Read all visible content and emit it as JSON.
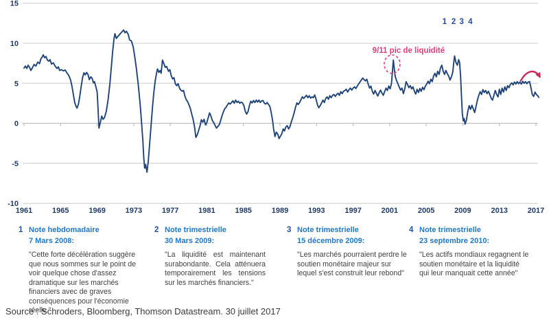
{
  "colors": {
    "line": "#1e4379",
    "grid": "#cbcbcb",
    "axis_line": "#b3b3b3",
    "axis_text": "#1f3a68",
    "pink": "#e13d78",
    "arrow_pink": "#c92956",
    "note_number": "#2150a0",
    "note_heading": "#1f78c8",
    "body_text": "#404040"
  },
  "chart_data": {
    "type": "line",
    "title": "",
    "x_axis": {
      "ticks": [
        1961,
        1965,
        1969,
        1973,
        1977,
        1981,
        1985,
        1989,
        1993,
        1997,
        2001,
        2005,
        2009,
        2013,
        2017
      ],
      "range": [
        1961,
        2017.6
      ]
    },
    "y_axis": {
      "ticks": [
        15,
        10,
        5,
        0,
        -5,
        -10
      ],
      "range": [
        -10,
        15
      ]
    },
    "grid": true,
    "annotations": {
      "peak": {
        "text": "9/11 pic de liquidité",
        "label_year": 2003.07,
        "label_value": 8.8,
        "circle_year": 2001.27,
        "circle_value": 7.38,
        "circle_rx": 11.5,
        "circle_ry": 13.5
      },
      "note_markers": [
        {
          "label": "1",
          "year": 2007.0
        },
        {
          "label": "2",
          "year": 2008.0
        },
        {
          "label": "3",
          "year": 2008.87
        },
        {
          "label": "4",
          "year": 2009.82
        }
      ],
      "arrow": {
        "x1": 2015.3,
        "y1": 5.25,
        "cx1": 2016.0,
        "cy1": 6.7,
        "cx2": 2016.9,
        "cy2": 6.85,
        "x2": 2017.45,
        "y2": 5.75
      }
    },
    "points": [
      [
        1961.0,
        6.9
      ],
      [
        1961.15,
        7.15
      ],
      [
        1961.3,
        6.85
      ],
      [
        1961.45,
        7.25
      ],
      [
        1961.6,
        7.0
      ],
      [
        1961.75,
        6.6
      ],
      [
        1961.9,
        6.9
      ],
      [
        1962.1,
        7.35
      ],
      [
        1962.3,
        7.15
      ],
      [
        1962.5,
        7.65
      ],
      [
        1962.7,
        7.45
      ],
      [
        1962.85,
        8.05
      ],
      [
        1963.0,
        8.3
      ],
      [
        1963.1,
        8.55
      ],
      [
        1963.25,
        8.2
      ],
      [
        1963.4,
        8.35
      ],
      [
        1963.55,
        7.9
      ],
      [
        1963.7,
        7.75
      ],
      [
        1963.85,
        7.95
      ],
      [
        1964.0,
        7.4
      ],
      [
        1964.2,
        7.55
      ],
      [
        1964.4,
        7.15
      ],
      [
        1964.6,
        6.85
      ],
      [
        1964.75,
        7.05
      ],
      [
        1964.9,
        6.6
      ],
      [
        1965.1,
        6.7
      ],
      [
        1965.3,
        6.55
      ],
      [
        1965.5,
        6.65
      ],
      [
        1965.7,
        6.3
      ],
      [
        1965.9,
        5.95
      ],
      [
        1966.1,
        5.4
      ],
      [
        1966.25,
        4.6
      ],
      [
        1966.4,
        3.6
      ],
      [
        1966.55,
        2.6
      ],
      [
        1966.7,
        2.1
      ],
      [
        1966.8,
        1.9
      ],
      [
        1966.95,
        2.4
      ],
      [
        1967.1,
        3.4
      ],
      [
        1967.25,
        4.6
      ],
      [
        1967.4,
        5.7
      ],
      [
        1967.55,
        6.3
      ],
      [
        1967.7,
        6.05
      ],
      [
        1967.85,
        6.35
      ],
      [
        1968.0,
        6.1
      ],
      [
        1968.15,
        5.45
      ],
      [
        1968.3,
        5.8
      ],
      [
        1968.45,
        5.65
      ],
      [
        1968.6,
        5.05
      ],
      [
        1968.7,
        5.2
      ],
      [
        1968.85,
        4.6
      ],
      [
        1969.0,
        3.9
      ],
      [
        1969.1,
        1.8
      ],
      [
        1969.2,
        -0.6
      ],
      [
        1969.35,
        0.1
      ],
      [
        1969.5,
        0.9
      ],
      [
        1969.65,
        0.5
      ],
      [
        1969.8,
        0.7
      ],
      [
        1970.0,
        1.5
      ],
      [
        1970.2,
        3.0
      ],
      [
        1970.4,
        5.0
      ],
      [
        1970.55,
        7.0
      ],
      [
        1970.7,
        9.0
      ],
      [
        1970.85,
        10.6
      ],
      [
        1970.95,
        11.2
      ],
      [
        1971.1,
        10.6
      ],
      [
        1971.3,
        10.9
      ],
      [
        1971.5,
        11.15
      ],
      [
        1971.7,
        11.4
      ],
      [
        1971.9,
        11.65
      ],
      [
        1972.05,
        11.3
      ],
      [
        1972.2,
        11.5
      ],
      [
        1972.4,
        11.1
      ],
      [
        1972.55,
        10.4
      ],
      [
        1972.75,
        10.3
      ],
      [
        1972.95,
        9.5
      ],
      [
        1973.1,
        8.4
      ],
      [
        1973.3,
        6.8
      ],
      [
        1973.5,
        4.8
      ],
      [
        1973.7,
        2.4
      ],
      [
        1973.85,
        0.2
      ],
      [
        1974.0,
        -2.2
      ],
      [
        1974.1,
        -4.3
      ],
      [
        1974.2,
        -5.6
      ],
      [
        1974.3,
        -5.15
      ],
      [
        1974.45,
        -6.1
      ],
      [
        1974.6,
        -4.6
      ],
      [
        1974.75,
        -2.4
      ],
      [
        1974.9,
        -0.2
      ],
      [
        1975.05,
        2.0
      ],
      [
        1975.2,
        3.9
      ],
      [
        1975.35,
        5.3
      ],
      [
        1975.5,
        6.3
      ],
      [
        1975.6,
        6.8
      ],
      [
        1975.75,
        6.35
      ],
      [
        1975.9,
        6.6
      ],
      [
        1976.0,
        6.25
      ],
      [
        1976.15,
        7.9
      ],
      [
        1976.3,
        7.45
      ],
      [
        1976.45,
        7.0
      ],
      [
        1976.6,
        7.1
      ],
      [
        1976.8,
        6.5
      ],
      [
        1976.95,
        6.7
      ],
      [
        1977.1,
        5.95
      ],
      [
        1977.25,
        5.55
      ],
      [
        1977.4,
        5.7
      ],
      [
        1977.55,
        4.95
      ],
      [
        1977.7,
        4.7
      ],
      [
        1977.85,
        4.95
      ],
      [
        1978.0,
        4.4
      ],
      [
        1978.15,
        4.15
      ],
      [
        1978.3,
        4.0
      ],
      [
        1978.45,
        4.1
      ],
      [
        1978.6,
        3.4
      ],
      [
        1978.75,
        2.95
      ],
      [
        1978.9,
        2.7
      ],
      [
        1979.05,
        2.3
      ],
      [
        1979.2,
        1.85
      ],
      [
        1979.35,
        1.15
      ],
      [
        1979.5,
        0.5
      ],
      [
        1979.65,
        -0.4
      ],
      [
        1979.8,
        -1.75
      ],
      [
        1979.95,
        -1.45
      ],
      [
        1980.1,
        -0.9
      ],
      [
        1980.25,
        -0.35
      ],
      [
        1980.4,
        0.45
      ],
      [
        1980.55,
        0.15
      ],
      [
        1980.7,
        0.5
      ],
      [
        1980.85,
        -0.2
      ],
      [
        1981.0,
        0.1
      ],
      [
        1981.15,
        0.7
      ],
      [
        1981.3,
        1.3
      ],
      [
        1981.45,
        0.9
      ],
      [
        1981.6,
        0.35
      ],
      [
        1981.75,
        0.1
      ],
      [
        1981.9,
        -0.25
      ],
      [
        1982.05,
        -0.6
      ],
      [
        1982.2,
        -0.4
      ],
      [
        1982.35,
        -0.2
      ],
      [
        1982.5,
        0.3
      ],
      [
        1982.65,
        0.9
      ],
      [
        1982.8,
        1.4
      ],
      [
        1982.95,
        1.8
      ],
      [
        1983.1,
        2.0
      ],
      [
        1983.25,
        2.3
      ],
      [
        1983.4,
        2.55
      ],
      [
        1983.55,
        2.4
      ],
      [
        1983.7,
        2.6
      ],
      [
        1983.85,
        2.8
      ],
      [
        1984.0,
        2.5
      ],
      [
        1984.15,
        2.9
      ],
      [
        1984.3,
        2.6
      ],
      [
        1984.45,
        2.75
      ],
      [
        1984.6,
        2.5
      ],
      [
        1984.75,
        2.65
      ],
      [
        1984.9,
        2.55
      ],
      [
        1985.05,
        2.2
      ],
      [
        1985.2,
        1.5
      ],
      [
        1985.35,
        1.15
      ],
      [
        1985.5,
        1.45
      ],
      [
        1985.65,
        2.2
      ],
      [
        1985.8,
        2.75
      ],
      [
        1985.95,
        2.55
      ],
      [
        1986.1,
        2.85
      ],
      [
        1986.25,
        2.6
      ],
      [
        1986.4,
        2.9
      ],
      [
        1986.55,
        2.65
      ],
      [
        1986.7,
        2.9
      ],
      [
        1986.85,
        2.6
      ],
      [
        1987.0,
        2.8
      ],
      [
        1987.15,
        2.85
      ],
      [
        1987.3,
        2.5
      ],
      [
        1987.45,
        2.4
      ],
      [
        1987.6,
        2.6
      ],
      [
        1987.75,
        2.35
      ],
      [
        1987.9,
        2.1
      ],
      [
        1988.05,
        1.3
      ],
      [
        1988.2,
        0.3
      ],
      [
        1988.3,
        -0.7
      ],
      [
        1988.45,
        -1.65
      ],
      [
        1988.6,
        -1.1
      ],
      [
        1988.75,
        -1.35
      ],
      [
        1988.9,
        -1.9
      ],
      [
        1989.05,
        -1.6
      ],
      [
        1989.2,
        -1.3
      ],
      [
        1989.35,
        -0.7
      ],
      [
        1989.5,
        -0.95
      ],
      [
        1989.65,
        -0.45
      ],
      [
        1989.8,
        -0.3
      ],
      [
        1989.95,
        -0.7
      ],
      [
        1990.1,
        -0.4
      ],
      [
        1990.25,
        0.2
      ],
      [
        1990.4,
        0.7
      ],
      [
        1990.55,
        1.3
      ],
      [
        1990.7,
        2.0
      ],
      [
        1990.85,
        2.55
      ],
      [
        1991.0,
        2.35
      ],
      [
        1991.15,
        2.6
      ],
      [
        1991.3,
        2.95
      ],
      [
        1991.45,
        3.3
      ],
      [
        1991.6,
        3.1
      ],
      [
        1991.75,
        3.3
      ],
      [
        1991.9,
        3.5
      ],
      [
        1992.05,
        3.2
      ],
      [
        1992.2,
        3.45
      ],
      [
        1992.35,
        3.15
      ],
      [
        1992.5,
        3.3
      ],
      [
        1992.65,
        3.2
      ],
      [
        1992.8,
        3.55
      ],
      [
        1992.95,
        3.0
      ],
      [
        1993.1,
        2.3
      ],
      [
        1993.25,
        1.95
      ],
      [
        1993.4,
        2.2
      ],
      [
        1993.55,
        2.55
      ],
      [
        1993.7,
        2.9
      ],
      [
        1993.85,
        2.6
      ],
      [
        1994.0,
        3.1
      ],
      [
        1994.15,
        3.3
      ],
      [
        1994.3,
        3.0
      ],
      [
        1994.45,
        3.45
      ],
      [
        1994.6,
        3.2
      ],
      [
        1994.75,
        3.5
      ],
      [
        1994.9,
        3.6
      ],
      [
        1995.05,
        3.35
      ],
      [
        1995.2,
        3.6
      ],
      [
        1995.35,
        3.75
      ],
      [
        1995.5,
        3.5
      ],
      [
        1995.65,
        3.95
      ],
      [
        1995.8,
        3.7
      ],
      [
        1995.95,
        4.0
      ],
      [
        1996.1,
        4.1
      ],
      [
        1996.25,
        4.25
      ],
      [
        1996.4,
        3.9
      ],
      [
        1996.55,
        4.2
      ],
      [
        1996.7,
        4.4
      ],
      [
        1996.85,
        4.15
      ],
      [
        1997.0,
        4.4
      ],
      [
        1997.15,
        4.55
      ],
      [
        1997.3,
        4.35
      ],
      [
        1997.45,
        4.65
      ],
      [
        1997.6,
        4.9
      ],
      [
        1997.75,
        5.15
      ],
      [
        1997.9,
        5.4
      ],
      [
        1998.05,
        5.65
      ],
      [
        1998.2,
        5.45
      ],
      [
        1998.35,
        5.3
      ],
      [
        1998.5,
        5.5
      ],
      [
        1998.65,
        4.9
      ],
      [
        1998.8,
        4.4
      ],
      [
        1998.95,
        4.65
      ],
      [
        1999.1,
        4.0
      ],
      [
        1999.25,
        3.65
      ],
      [
        1999.4,
        4.1
      ],
      [
        1999.55,
        3.75
      ],
      [
        1999.7,
        3.4
      ],
      [
        1999.85,
        3.8
      ],
      [
        2000.0,
        4.15
      ],
      [
        2000.15,
        3.8
      ],
      [
        2000.3,
        3.5
      ],
      [
        2000.45,
        3.95
      ],
      [
        2000.6,
        4.4
      ],
      [
        2000.75,
        4.1
      ],
      [
        2000.9,
        4.65
      ],
      [
        2001.05,
        4.3
      ],
      [
        2001.2,
        5.0
      ],
      [
        2001.3,
        6.4
      ],
      [
        2001.4,
        7.9
      ],
      [
        2001.5,
        6.9
      ],
      [
        2001.6,
        5.9
      ],
      [
        2001.75,
        5.35
      ],
      [
        2001.9,
        4.95
      ],
      [
        2002.05,
        4.5
      ],
      [
        2002.2,
        4.15
      ],
      [
        2002.35,
        4.4
      ],
      [
        2002.5,
        3.7
      ],
      [
        2002.65,
        4.3
      ],
      [
        2002.8,
        5.2
      ],
      [
        2002.95,
        4.85
      ],
      [
        2003.1,
        4.45
      ],
      [
        2003.25,
        4.7
      ],
      [
        2003.4,
        4.3
      ],
      [
        2003.55,
        4.55
      ],
      [
        2003.7,
        4.0
      ],
      [
        2003.85,
        3.65
      ],
      [
        2004.0,
        4.25
      ],
      [
        2004.15,
        3.85
      ],
      [
        2004.3,
        4.35
      ],
      [
        2004.45,
        4.0
      ],
      [
        2004.6,
        4.5
      ],
      [
        2004.75,
        4.2
      ],
      [
        2004.9,
        4.65
      ],
      [
        2005.05,
        4.9
      ],
      [
        2005.2,
        5.25
      ],
      [
        2005.35,
        4.95
      ],
      [
        2005.5,
        5.5
      ],
      [
        2005.65,
        5.2
      ],
      [
        2005.8,
        5.9
      ],
      [
        2005.95,
        6.25
      ],
      [
        2006.1,
        5.8
      ],
      [
        2006.25,
        6.5
      ],
      [
        2006.4,
        6.1
      ],
      [
        2006.55,
        6.9
      ],
      [
        2006.7,
        7.25
      ],
      [
        2006.85,
        6.5
      ],
      [
        2007.0,
        6.1
      ],
      [
        2007.15,
        6.6
      ],
      [
        2007.3,
        6.2
      ],
      [
        2007.45,
        5.9
      ],
      [
        2007.6,
        5.4
      ],
      [
        2007.75,
        5.8
      ],
      [
        2007.9,
        6.4
      ],
      [
        2008.0,
        7.5
      ],
      [
        2008.1,
        8.4
      ],
      [
        2008.25,
        7.6
      ],
      [
        2008.4,
        7.25
      ],
      [
        2008.55,
        7.95
      ],
      [
        2008.65,
        7.6
      ],
      [
        2008.75,
        6.0
      ],
      [
        2008.85,
        3.5
      ],
      [
        2008.95,
        1.2
      ],
      [
        2009.05,
        0.3
      ],
      [
        2009.15,
        0.6
      ],
      [
        2009.25,
        -0.1
      ],
      [
        2009.4,
        0.4
      ],
      [
        2009.55,
        1.5
      ],
      [
        2009.7,
        2.2
      ],
      [
        2009.85,
        1.75
      ],
      [
        2010.0,
        2.25
      ],
      [
        2010.15,
        1.8
      ],
      [
        2010.3,
        1.35
      ],
      [
        2010.45,
        2.1
      ],
      [
        2010.6,
        2.9
      ],
      [
        2010.75,
        3.5
      ],
      [
        2010.9,
        3.95
      ],
      [
        2011.05,
        3.6
      ],
      [
        2011.2,
        4.2
      ],
      [
        2011.35,
        3.85
      ],
      [
        2011.5,
        4.1
      ],
      [
        2011.65,
        3.7
      ],
      [
        2011.8,
        4.0
      ],
      [
        2011.95,
        3.6
      ],
      [
        2012.1,
        3.15
      ],
      [
        2012.25,
        2.9
      ],
      [
        2012.4,
        3.5
      ],
      [
        2012.55,
        4.1
      ],
      [
        2012.7,
        3.6
      ],
      [
        2012.85,
        3.3
      ],
      [
        2013.0,
        4.25
      ],
      [
        2013.15,
        3.6
      ],
      [
        2013.3,
        4.4
      ],
      [
        2013.45,
        3.9
      ],
      [
        2013.6,
        4.55
      ],
      [
        2013.75,
        4.1
      ],
      [
        2013.9,
        4.7
      ],
      [
        2014.05,
        4.45
      ],
      [
        2014.2,
        4.85
      ],
      [
        2014.35,
        5.05
      ],
      [
        2014.5,
        4.8
      ],
      [
        2014.65,
        5.15
      ],
      [
        2014.8,
        4.9
      ],
      [
        2014.95,
        5.2
      ],
      [
        2015.1,
        4.95
      ],
      [
        2015.25,
        5.15
      ],
      [
        2015.4,
        4.9
      ],
      [
        2015.55,
        5.25
      ],
      [
        2015.7,
        5.0
      ],
      [
        2015.85,
        5.2
      ],
      [
        2016.0,
        4.95
      ],
      [
        2016.15,
        5.15
      ],
      [
        2016.3,
        5.2
      ],
      [
        2016.45,
        4.5
      ],
      [
        2016.6,
        3.6
      ],
      [
        2016.75,
        3.35
      ],
      [
        2016.9,
        3.9
      ],
      [
        2017.05,
        3.6
      ],
      [
        2017.2,
        3.45
      ],
      [
        2017.3,
        3.25
      ]
    ]
  },
  "notes": [
    {
      "number": "1",
      "title": "Note hebdomadaire",
      "date": "7 Mars 2008:",
      "quote": "\"Cette forte décélération suggère que nous sommes sur le point de voir quelque chose d'assez dramatique sur les marchés financiers avec de graves conséquences pour l'économie réelle.\""
    },
    {
      "number": "2",
      "title": "Note trimestrielle",
      "date": "30 Mars 2009:",
      "quote": "\"La liquidité est maintenant surabondante. Cela atténuera temporairement les tensions sur les marchés financiers.\""
    },
    {
      "number": "3",
      "title": "Note trimestrielle",
      "date": "15 décembre 2009:",
      "quote": "\"Les marchés pourraient perdre le soutien monétaire majeur sur lequel s'est construit leur rebond\""
    },
    {
      "number": "4",
      "title": "Note trimestrielle",
      "date": "23 septembre 2010:",
      "quote": "\"Les actifs mondiaux regagnent le soutien monétaire et la liquidité qui leur manquait cette année\""
    }
  ],
  "source": "Source : Schroders, Bloomberg, Thomson Datastream. 30 juillet 2017"
}
